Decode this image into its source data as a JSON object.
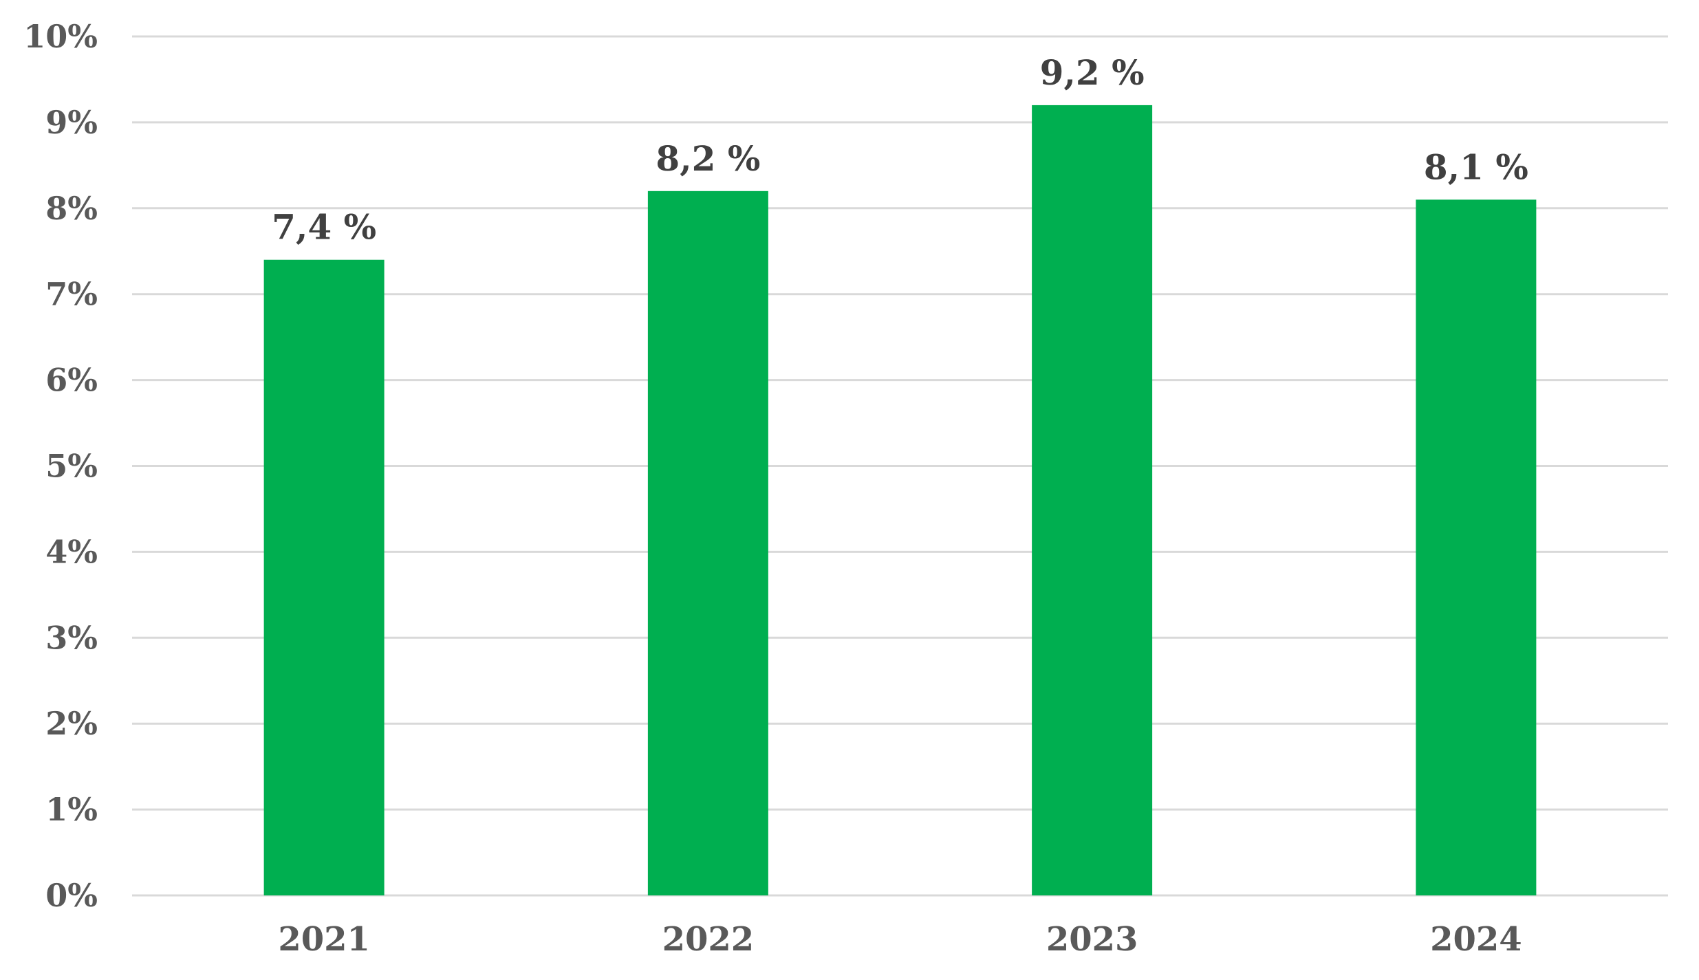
{
  "chart_data": {
    "type": "bar",
    "title": "",
    "xlabel": "",
    "ylabel": "",
    "categories": [
      "2021",
      "2022",
      "2023",
      "2024"
    ],
    "values": [
      7.4,
      8.2,
      9.2,
      8.1
    ],
    "data_labels": [
      "7,4 %",
      "8,2 %",
      "9,2 %",
      "8,1 %"
    ],
    "ylim": [
      0,
      10
    ],
    "y_ticks": [
      0,
      1,
      2,
      3,
      4,
      5,
      6,
      7,
      8,
      9,
      10
    ],
    "y_tick_labels": [
      "0%",
      "1%",
      "2%",
      "3%",
      "4%",
      "5%",
      "6%",
      "7%",
      "8%",
      "9%",
      "10%"
    ],
    "grid": true,
    "legend": "none",
    "colors": {
      "bar": "#00AF50",
      "grid": "#D9D9D9",
      "tick_text": "#595959",
      "data_label_text": "#404040"
    }
  }
}
